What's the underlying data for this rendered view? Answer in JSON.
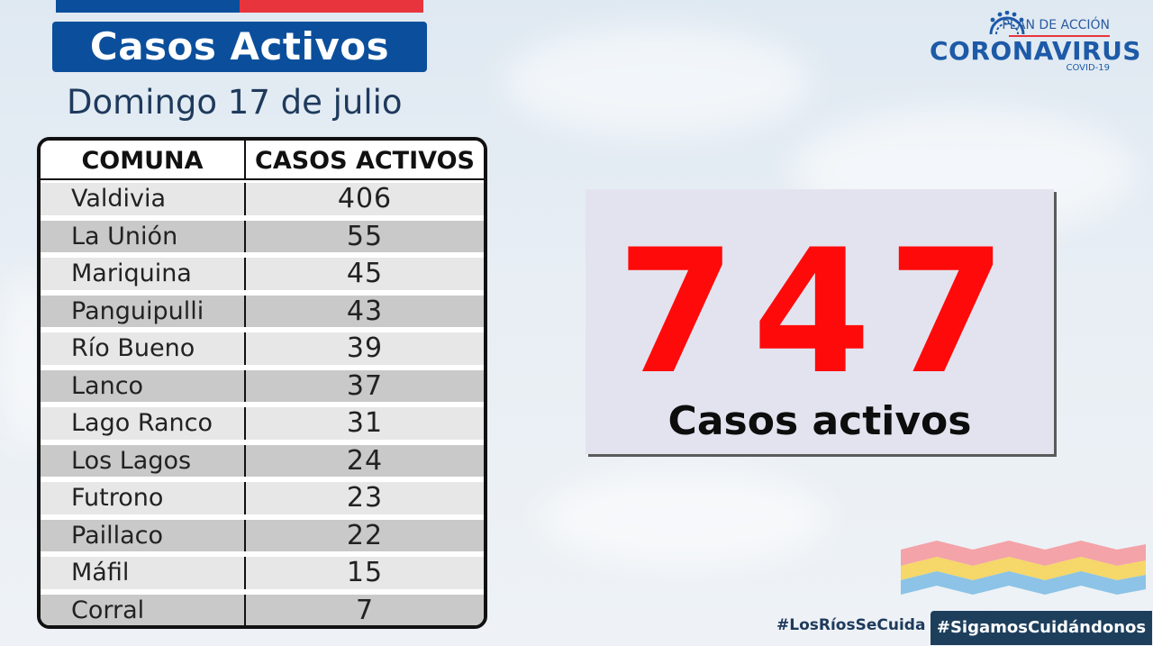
{
  "header": {
    "title": "Casos Activos",
    "date": "Domingo 17 de julio"
  },
  "logo": {
    "plan": "PLAN DE ACCIÓN",
    "name": "CORONAVIRUS",
    "sub": "COVID-19"
  },
  "table": {
    "headers": [
      "COMUNA",
      "CASOS ACTIVOS"
    ],
    "rows": [
      {
        "comuna": "Valdivia",
        "casos": "406"
      },
      {
        "comuna": "La Unión",
        "casos": "55"
      },
      {
        "comuna": "Mariquina",
        "casos": "45"
      },
      {
        "comuna": "Panguipulli",
        "casos": "43"
      },
      {
        "comuna": "Río Bueno",
        "casos": "39"
      },
      {
        "comuna": "Lanco",
        "casos": "37"
      },
      {
        "comuna": "Lago Ranco",
        "casos": "31"
      },
      {
        "comuna": "Los Lagos",
        "casos": "24"
      },
      {
        "comuna": "Futrono",
        "casos": "23"
      },
      {
        "comuna": "Paillaco",
        "casos": "22"
      },
      {
        "comuna": "Máfil",
        "casos": "15"
      },
      {
        "comuna": "Corral",
        "casos": "7"
      }
    ]
  },
  "total": {
    "value": "747",
    "label": "Casos activos"
  },
  "footer": {
    "hashtag1": "#LosRíosSeCuida",
    "hashtag2": "#SigamosCuidándonos"
  },
  "colors": {
    "brand_blue": "#0b4f9c",
    "brand_red": "#e8353d",
    "total_red": "#ff0a0a"
  }
}
